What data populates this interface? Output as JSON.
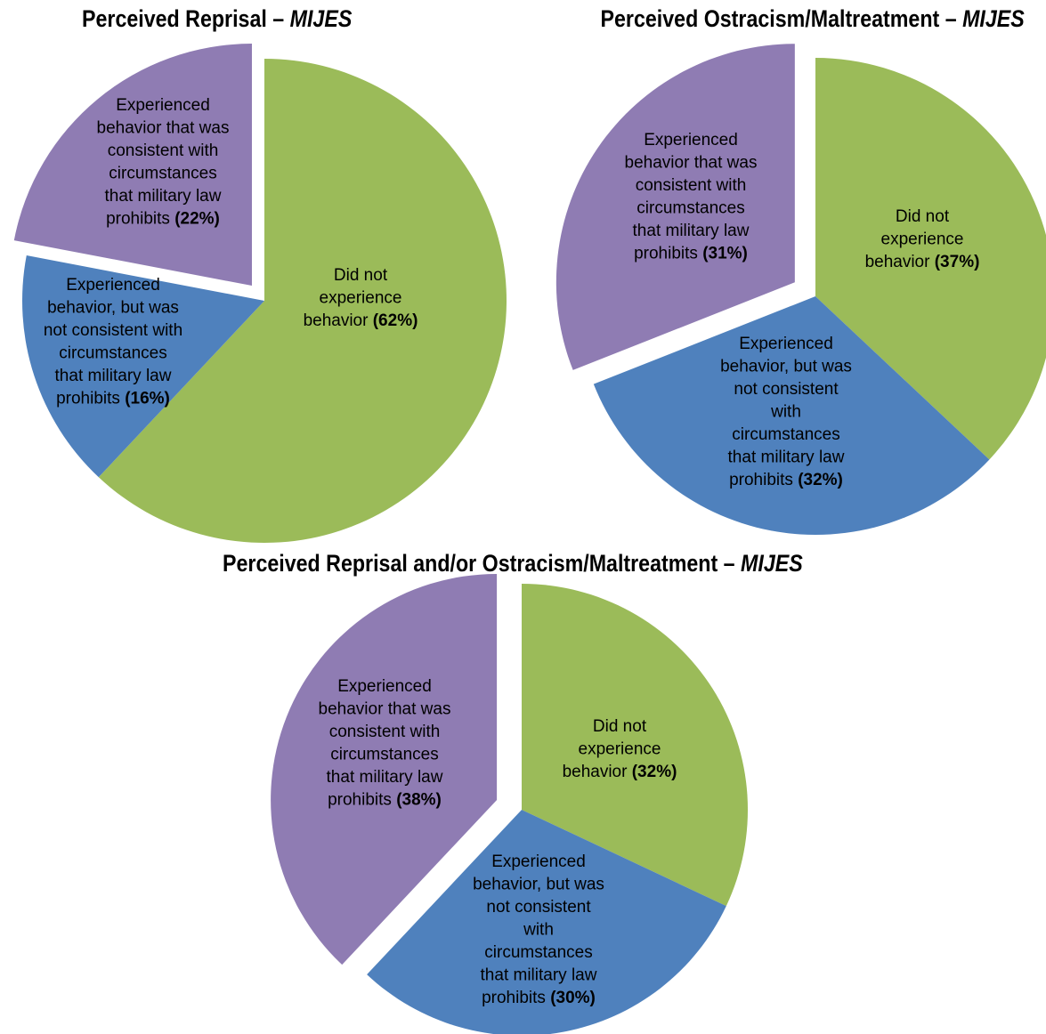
{
  "colors": {
    "green": "#9bbb59",
    "blue": "#4f81bd",
    "purple": "#8f7cb3"
  },
  "chart_data": [
    {
      "type": "pie",
      "title_main": "Perceived Reprisal – ",
      "title_italic": "MIJES",
      "slices": [
        {
          "color": "green",
          "value": 62,
          "lines": [
            "Did not",
            "experience",
            "behavior "
          ],
          "pct": "(62%)"
        },
        {
          "color": "blue",
          "value": 16,
          "lines": [
            "Experienced",
            "behavior, but was",
            "not consistent with",
            "circumstances",
            "that military law",
            "prohibits "
          ],
          "pct": "(16%)"
        },
        {
          "color": "purple",
          "value": 22,
          "lines": [
            "Experienced",
            "behavior that was",
            "consistent with",
            "circumstances",
            "that military law",
            "prohibits "
          ],
          "pct": "(22%)"
        }
      ]
    },
    {
      "type": "pie",
      "title_main": "Perceived Ostracism/Maltreatment – ",
      "title_italic": "MIJES",
      "slices": [
        {
          "color": "green",
          "value": 37,
          "lines": [
            "Did not",
            "experience",
            "behavior  "
          ],
          "pct": "(37%)"
        },
        {
          "color": "blue",
          "value": 32,
          "lines": [
            "Experienced",
            "behavior, but was",
            "not consistent",
            "with",
            "circumstances",
            "that military law",
            "prohibits "
          ],
          "pct": "(32%)"
        },
        {
          "color": "purple",
          "value": 31,
          "lines": [
            "Experienced",
            "behavior that was",
            "consistent with",
            "circumstances",
            "that military law",
            "prohibits  "
          ],
          "pct": "(31%)"
        }
      ]
    },
    {
      "type": "pie",
      "title_main": "Perceived Reprisal and/or Ostracism/Maltreatment – ",
      "title_italic": "MIJES",
      "slices": [
        {
          "color": "green",
          "value": 32,
          "lines": [
            "Did not",
            "experience",
            "behavior "
          ],
          "pct": "(32%)"
        },
        {
          "color": "blue",
          "value": 30,
          "lines": [
            "Experienced",
            "behavior, but was",
            "not consistent",
            "with",
            "circumstances",
            "that military law",
            "prohibits "
          ],
          "pct": "(30%)"
        },
        {
          "color": "purple",
          "value": 38,
          "lines": [
            "Experienced",
            "behavior that was",
            "consistent with",
            "circumstances",
            "that military law",
            "prohibits "
          ],
          "pct": "(38%)"
        }
      ]
    }
  ]
}
